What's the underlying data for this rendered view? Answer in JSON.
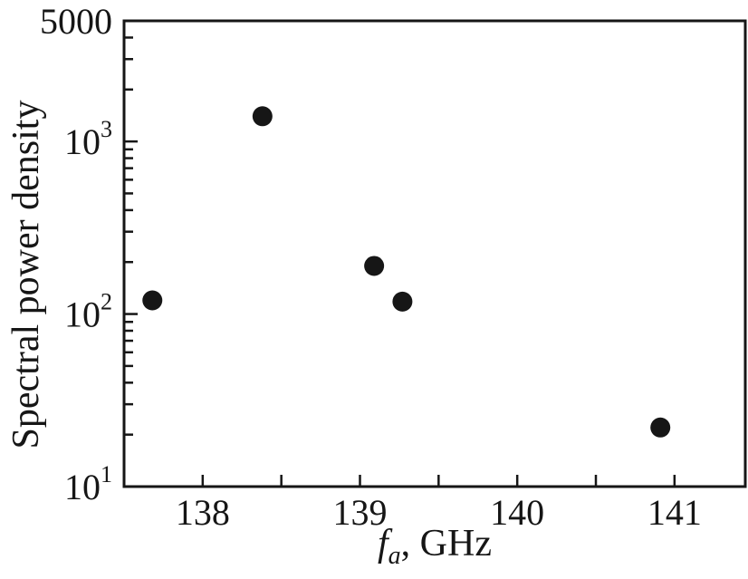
{
  "figure": {
    "background_color": "#ffffff"
  },
  "chart_data": {
    "type": "scatter",
    "title": "",
    "xlabel": "fa, GHz",
    "xlabel_parts": {
      "variable": "f",
      "subscript": "a",
      "suffix": ", GHz"
    },
    "ylabel": "Spectral power density",
    "x_scale": "linear",
    "y_scale": "log",
    "xlim": [
      137.5,
      141.45
    ],
    "ylim": [
      10,
      5000
    ],
    "x_major_ticks": [
      {
        "value": 138,
        "label": "138"
      },
      {
        "value": 139,
        "label": "139"
      },
      {
        "value": 140,
        "label": "140"
      },
      {
        "value": 141,
        "label": "141"
      }
    ],
    "x_minor_ticks": [
      138.5,
      139.5,
      140.5
    ],
    "y_major_ticks": [
      {
        "value": 5000,
        "label": "5000",
        "superscript": ""
      },
      {
        "value": 1000,
        "label": "10",
        "superscript": "3"
      },
      {
        "value": 100,
        "label": "10",
        "superscript": "2"
      },
      {
        "value": 10,
        "label": "10",
        "superscript": "1"
      }
    ],
    "y_minor_ticks": [
      20,
      30,
      40,
      50,
      60,
      70,
      80,
      90,
      200,
      300,
      400,
      500,
      600,
      700,
      800,
      900,
      2000,
      3000,
      4000
    ],
    "grid": false,
    "legend": null,
    "series": [
      {
        "name": "spectral-power-density",
        "marker": "filled-circle",
        "color": "#161616",
        "points": [
          {
            "x": 137.68,
            "y": 120
          },
          {
            "x": 138.38,
            "y": 1400
          },
          {
            "x": 139.09,
            "y": 190
          },
          {
            "x": 139.27,
            "y": 118
          },
          {
            "x": 140.91,
            "y": 22
          }
        ]
      }
    ],
    "axis_color": "#161616",
    "text_color": "#161616",
    "background_color": "#ffffff"
  }
}
